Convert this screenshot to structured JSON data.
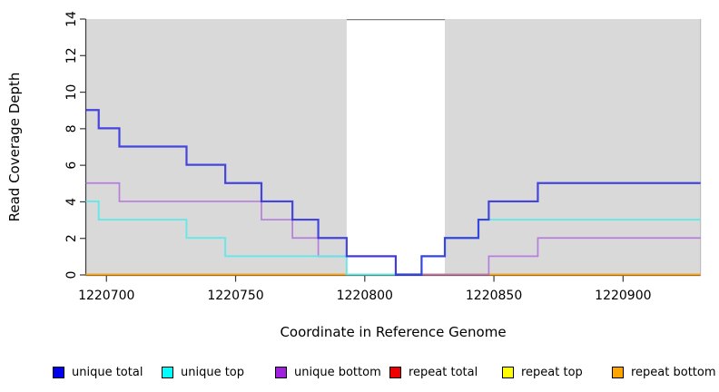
{
  "chart_data": {
    "type": "line",
    "subtype": "step-coverage",
    "title": "",
    "xlabel": "Coordinate in Reference Genome",
    "ylabel": "Read Coverage Depth",
    "xlim": [
      1220692,
      1220930
    ],
    "ylim": [
      0,
      14
    ],
    "x_ticks": [
      1220700,
      1220750,
      1220800,
      1220850,
      1220900
    ],
    "y_ticks": [
      0,
      2,
      4,
      6,
      8,
      10,
      12,
      14
    ],
    "grid": "off",
    "legend_position": "bottom",
    "shading": {
      "shaded_color": "#d9d9d9",
      "gray_regions": [
        [
          1220692,
          1220793
        ],
        [
          1220831,
          1220930
        ]
      ],
      "white_gap": [
        1220793,
        1220831
      ],
      "gap_top_line_color": "#808080"
    },
    "axis_color": "#3a3a3a",
    "series": [
      {
        "name": "unique total",
        "legend_color": "#0000ee",
        "line_color": "#2a2ade",
        "steps": [
          [
            1220692,
            9
          ],
          [
            1220697,
            8
          ],
          [
            1220705,
            7
          ],
          [
            1220731,
            6
          ],
          [
            1220746,
            5
          ],
          [
            1220760,
            4
          ],
          [
            1220772,
            3
          ],
          [
            1220782,
            2
          ],
          [
            1220793,
            1
          ],
          [
            1220812,
            0
          ],
          [
            1220822,
            1
          ],
          [
            1220831,
            2
          ],
          [
            1220844,
            3
          ],
          [
            1220848,
            4
          ],
          [
            1220867,
            5
          ]
        ]
      },
      {
        "name": "unique top",
        "legend_color": "#00ffff",
        "line_color": "#5ee9e9",
        "steps": [
          [
            1220692,
            4
          ],
          [
            1220697,
            3
          ],
          [
            1220731,
            2
          ],
          [
            1220746,
            1
          ],
          [
            1220793,
            0
          ],
          [
            1220822,
            1
          ],
          [
            1220831,
            2
          ],
          [
            1220844,
            3
          ]
        ]
      },
      {
        "name": "unique bottom",
        "legend_color": "#a020e0",
        "line_color": "#ad66dd",
        "steps": [
          [
            1220692,
            5
          ],
          [
            1220705,
            4
          ],
          [
            1220760,
            3
          ],
          [
            1220772,
            2
          ],
          [
            1220782,
            1
          ],
          [
            1220812,
            0
          ],
          [
            1220848,
            1
          ],
          [
            1220867,
            2
          ]
        ]
      },
      {
        "name": "repeat total",
        "legend_color": "#ee0000",
        "line_color": "#ee2222",
        "steps": [
          [
            1220692,
            0
          ]
        ]
      },
      {
        "name": "repeat top",
        "legend_color": "#ffff00",
        "line_color": "#ffff00",
        "steps": [
          [
            1220692,
            0
          ]
        ]
      },
      {
        "name": "repeat bottom",
        "legend_color": "#ffa500",
        "line_color": "#ffa513",
        "steps": [
          [
            1220692,
            0
          ]
        ]
      }
    ]
  }
}
